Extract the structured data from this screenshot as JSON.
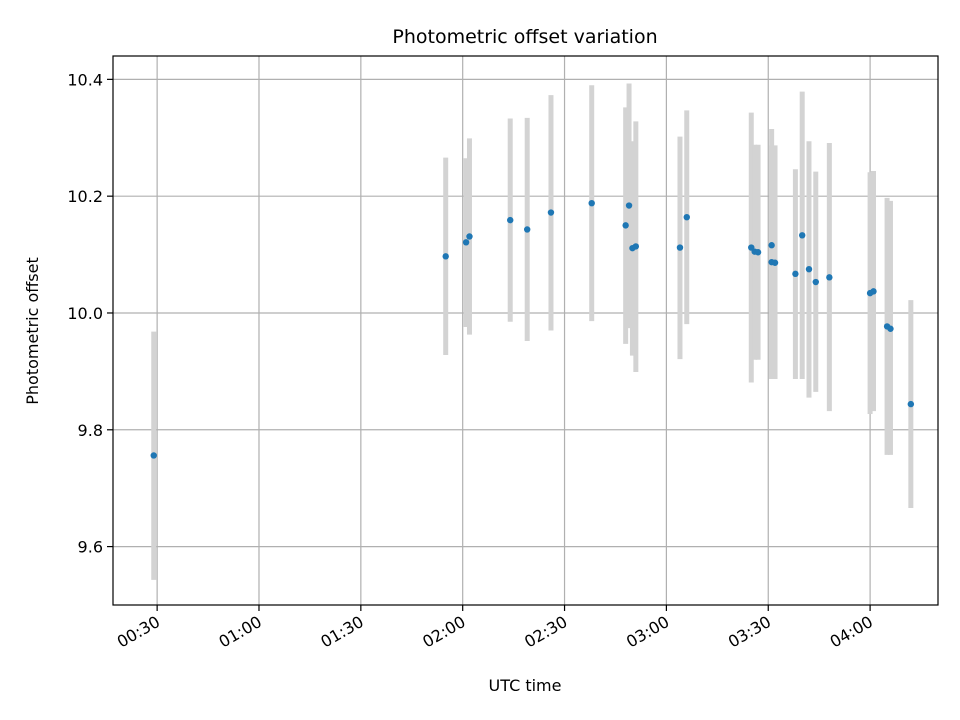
{
  "chart_data": {
    "type": "scatter",
    "title": "Photometric offset variation",
    "xlabel": "UTC time",
    "ylabel": "Photometric offset",
    "grid": true,
    "legend": "none",
    "colors": {
      "points": "#1f77b4",
      "errorbars": "#d3d3d3",
      "grid": "#b0b0b0"
    },
    "xlim": [
      "00:17",
      "04:20"
    ],
    "ylim": [
      9.5,
      10.44
    ],
    "xticks": [
      "00:30",
      "01:00",
      "01:30",
      "02:00",
      "02:30",
      "03:00",
      "03:30",
      "04:00"
    ],
    "yticks": [
      9.6,
      9.8,
      10.0,
      10.2,
      10.4
    ],
    "ytick_labels": [
      "9.6",
      "9.8",
      "10.0",
      "10.2",
      "10.4"
    ],
    "points": [
      {
        "x": "00:29",
        "y": 9.756,
        "err_lo": 9.543,
        "err_hi": 9.968
      },
      {
        "x": "01:55",
        "y": 10.097,
        "err_lo": 9.928,
        "err_hi": 10.266
      },
      {
        "x": "02:01",
        "y": 10.121,
        "err_lo": 9.976,
        "err_hi": 10.265
      },
      {
        "x": "02:02",
        "y": 10.131,
        "err_lo": 9.963,
        "err_hi": 10.299
      },
      {
        "x": "02:14",
        "y": 10.159,
        "err_lo": 9.985,
        "err_hi": 10.333
      },
      {
        "x": "02:19",
        "y": 10.143,
        "err_lo": 9.952,
        "err_hi": 10.334
      },
      {
        "x": "02:26",
        "y": 10.172,
        "err_lo": 9.97,
        "err_hi": 10.373
      },
      {
        "x": "02:38",
        "y": 10.188,
        "err_lo": 9.986,
        "err_hi": 10.39
      },
      {
        "x": "02:48",
        "y": 10.15,
        "err_lo": 9.947,
        "err_hi": 10.352
      },
      {
        "x": "02:49",
        "y": 10.184,
        "err_lo": 9.974,
        "err_hi": 10.393
      },
      {
        "x": "02:50",
        "y": 10.111,
        "err_lo": 9.927,
        "err_hi": 10.294
      },
      {
        "x": "02:51",
        "y": 10.114,
        "err_lo": 9.899,
        "err_hi": 10.328
      },
      {
        "x": "03:04",
        "y": 10.112,
        "err_lo": 9.921,
        "err_hi": 10.302
      },
      {
        "x": "03:06",
        "y": 10.164,
        "err_lo": 9.981,
        "err_hi": 10.347
      },
      {
        "x": "03:25",
        "y": 10.112,
        "err_lo": 9.881,
        "err_hi": 10.343
      },
      {
        "x": "03:26",
        "y": 10.105,
        "err_lo": 9.92,
        "err_hi": 10.288
      },
      {
        "x": "03:27",
        "y": 10.104,
        "err_lo": 9.92,
        "err_hi": 10.288
      },
      {
        "x": "03:31",
        "y": 10.116,
        "err_lo": 9.887,
        "err_hi": 10.315
      },
      {
        "x": "03:31",
        "y": 10.087,
        "err_lo": 9.887,
        "err_hi": 10.287
      },
      {
        "x": "03:32",
        "y": 10.086,
        "err_lo": 9.887,
        "err_hi": 10.287
      },
      {
        "x": "03:38",
        "y": 10.067,
        "err_lo": 9.887,
        "err_hi": 10.246
      },
      {
        "x": "03:40",
        "y": 10.133,
        "err_lo": 9.887,
        "err_hi": 10.379
      },
      {
        "x": "03:42",
        "y": 10.075,
        "err_lo": 9.855,
        "err_hi": 10.294
      },
      {
        "x": "03:44",
        "y": 10.053,
        "err_lo": 9.865,
        "err_hi": 10.242
      },
      {
        "x": "03:48",
        "y": 10.061,
        "err_lo": 9.832,
        "err_hi": 10.291
      },
      {
        "x": "04:00",
        "y": 10.034,
        "err_lo": 9.827,
        "err_hi": 10.241
      },
      {
        "x": "04:01",
        "y": 10.037,
        "err_lo": 9.832,
        "err_hi": 10.243
      },
      {
        "x": "04:05",
        "y": 9.977,
        "err_lo": 9.757,
        "err_hi": 10.197
      },
      {
        "x": "04:06",
        "y": 9.973,
        "err_lo": 9.757,
        "err_hi": 10.192
      },
      {
        "x": "04:12",
        "y": 9.844,
        "err_lo": 9.666,
        "err_hi": 10.022
      }
    ]
  }
}
